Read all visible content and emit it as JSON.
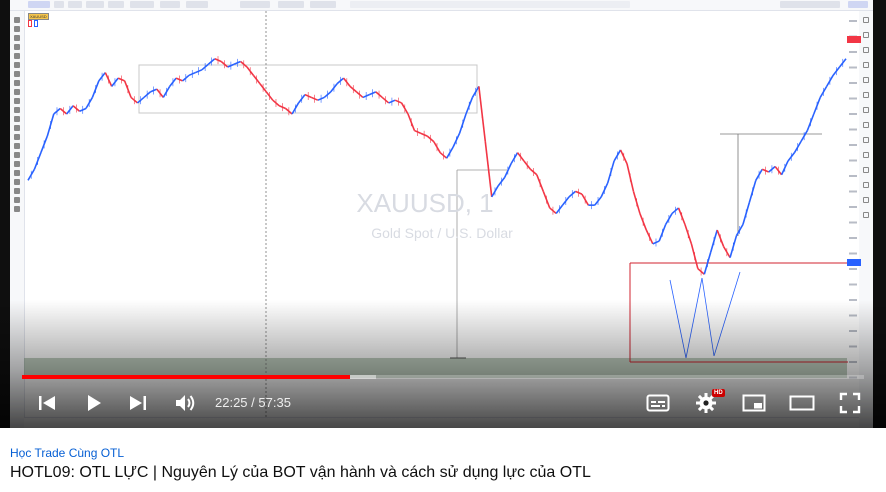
{
  "video": {
    "current_time": "22:25",
    "duration": "57:35",
    "time_separator": " / ",
    "played_fraction": 0.39,
    "buffered_fraction": 0.42,
    "hd_badge": "HD",
    "channel_name": "Học Trade Cùng OTL",
    "title": "HOTL09: OTL LỰC | Nguyên Lý của BOT vận hành và cách sử dụng lực của OTL"
  },
  "controls": {
    "previous_icon": "skip-previous-icon",
    "play_icon": "play-icon",
    "next_icon": "skip-next-icon",
    "volume_icon": "volume-icon",
    "subtitles_icon": "subtitles-icon",
    "settings_icon": "gear-icon",
    "miniplayer_icon": "miniplayer-icon",
    "theater_icon": "theater-mode-icon",
    "fullscreen_icon": "fullscreen-icon"
  },
  "tradingview": {
    "symbol_button": "XAUUSD",
    "watermark_symbol": "XAUUSD, 1",
    "watermark_name": "Gold Spot / U.S. Dollar",
    "colors": {
      "bull": "#2962ff",
      "bear": "#f23645",
      "zone_fill": "#8aa58a",
      "box_stroke": "#c8c8c8",
      "level_line": "#d0232f"
    }
  },
  "chart_data": {
    "type": "candlestick",
    "symbol": "XAUUSD",
    "timeframe": "1",
    "price_range_normalized": [
      0,
      1
    ],
    "closes_normalized": [
      0.56,
      0.6,
      0.66,
      0.72,
      0.8,
      0.82,
      0.8,
      0.83,
      0.81,
      0.82,
      0.86,
      0.92,
      0.95,
      0.9,
      0.93,
      0.92,
      0.86,
      0.84,
      0.86,
      0.88,
      0.89,
      0.86,
      0.9,
      0.93,
      0.92,
      0.94,
      0.95,
      0.96,
      0.98,
      1.0,
      0.99,
      0.97,
      0.98,
      0.99,
      0.97,
      0.94,
      0.91,
      0.88,
      0.85,
      0.83,
      0.82,
      0.8,
      0.84,
      0.87,
      0.86,
      0.85,
      0.86,
      0.88,
      0.91,
      0.93,
      0.9,
      0.88,
      0.86,
      0.87,
      0.88,
      0.86,
      0.84,
      0.85,
      0.84,
      0.8,
      0.74,
      0.73,
      0.72,
      0.7,
      0.66,
      0.64,
      0.68,
      0.73,
      0.8,
      0.86,
      0.9,
      0.7,
      0.5,
      0.54,
      0.57,
      0.62,
      0.66,
      0.63,
      0.6,
      0.58,
      0.52,
      0.46,
      0.44,
      0.47,
      0.5,
      0.52,
      0.51,
      0.47,
      0.47,
      0.5,
      0.55,
      0.63,
      0.67,
      0.62,
      0.52,
      0.44,
      0.38,
      0.33,
      0.34,
      0.4,
      0.44,
      0.46,
      0.4,
      0.33,
      0.24,
      0.22,
      0.3,
      0.38,
      0.32,
      0.28,
      0.36,
      0.4,
      0.48,
      0.56,
      0.6,
      0.59,
      0.61,
      0.58,
      0.63,
      0.66,
      0.7,
      0.74,
      0.8,
      0.86,
      0.9,
      0.94,
      0.97,
      1.0
    ]
  }
}
